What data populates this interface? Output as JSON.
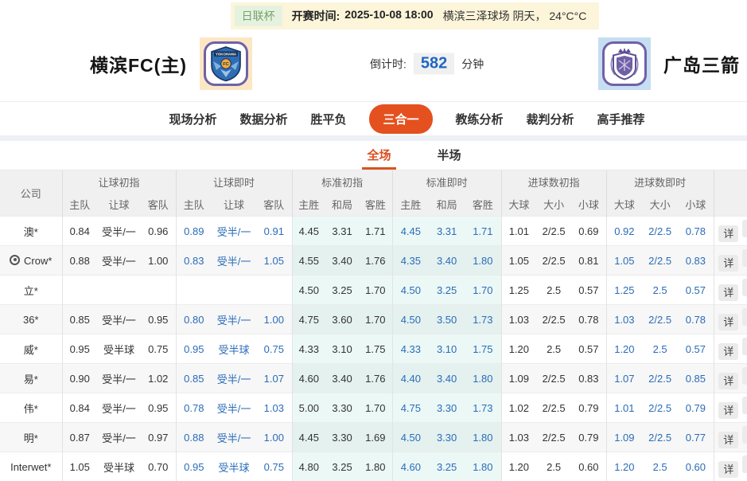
{
  "match_header": {
    "league": "日联杯",
    "kickoff_label": "开赛时间:",
    "kickoff_time": "2025-10-08 18:00",
    "venue_weather": "横滨三泽球场 阴天， 24°C°C",
    "home_team": "横滨FC(主)",
    "away_team": "广岛三箭",
    "home_logo_text": "YOKOHAMA",
    "home_logo_fc": "FC",
    "countdown_label": "倒计时:",
    "countdown_value": "582",
    "countdown_unit": "分钟"
  },
  "nav": {
    "items": [
      "现场分析",
      "数据分析",
      "胜平负",
      "三合一",
      "教练分析",
      "裁判分析",
      "高手推荐"
    ],
    "active_index": 3
  },
  "period_tabs": {
    "items": [
      "全场",
      "半场"
    ],
    "active_index": 0
  },
  "odds_table": {
    "company_header": "公司",
    "detail_label": "详",
    "groups": [
      {
        "label": "让球初指",
        "cols": [
          "主队",
          "让球",
          "客队"
        ]
      },
      {
        "label": "让球即时",
        "cols": [
          "主队",
          "让球",
          "客队"
        ]
      },
      {
        "label": "标准初指",
        "cols": [
          "主胜",
          "和局",
          "客胜"
        ]
      },
      {
        "label": "标准即时",
        "cols": [
          "主胜",
          "和局",
          "客胜"
        ]
      },
      {
        "label": "进球数初指",
        "cols": [
          "大球",
          "大小",
          "小球"
        ]
      },
      {
        "label": "进球数即时",
        "cols": [
          "大球",
          "大小",
          "小球"
        ]
      }
    ],
    "rows": [
      {
        "company": "澳*",
        "icon": false,
        "handicap_initial": [
          "0.84",
          "受半/一",
          "0.96"
        ],
        "handicap_live": [
          "0.89",
          "受半/一",
          "0.91"
        ],
        "std_initial": [
          "4.45",
          "3.31",
          "1.71"
        ],
        "std_live": [
          "4.45",
          "3.31",
          "1.71"
        ],
        "goals_initial": [
          "1.01",
          "2/2.5",
          "0.69"
        ],
        "goals_live": [
          "0.92",
          "2/2.5",
          "0.78"
        ]
      },
      {
        "company": "Crow*",
        "icon": true,
        "handicap_initial": [
          "0.88",
          "受半/一",
          "1.00"
        ],
        "handicap_live": [
          "0.83",
          "受半/一",
          "1.05"
        ],
        "std_initial": [
          "4.55",
          "3.40",
          "1.76"
        ],
        "std_live": [
          "4.35",
          "3.40",
          "1.80"
        ],
        "goals_initial": [
          "1.05",
          "2/2.5",
          "0.81"
        ],
        "goals_live": [
          "1.05",
          "2/2.5",
          "0.83"
        ]
      },
      {
        "company": "立*",
        "icon": false,
        "handicap_initial": [
          "",
          "",
          ""
        ],
        "handicap_live": [
          "",
          "",
          ""
        ],
        "std_initial": [
          "4.50",
          "3.25",
          "1.70"
        ],
        "std_live": [
          "4.50",
          "3.25",
          "1.70"
        ],
        "goals_initial": [
          "1.25",
          "2.5",
          "0.57"
        ],
        "goals_live": [
          "1.25",
          "2.5",
          "0.57"
        ]
      },
      {
        "company": "36*",
        "icon": false,
        "handicap_initial": [
          "0.85",
          "受半/一",
          "0.95"
        ],
        "handicap_live": [
          "0.80",
          "受半/一",
          "1.00"
        ],
        "std_initial": [
          "4.75",
          "3.60",
          "1.70"
        ],
        "std_live": [
          "4.50",
          "3.50",
          "1.73"
        ],
        "goals_initial": [
          "1.03",
          "2/2.5",
          "0.78"
        ],
        "goals_live": [
          "1.03",
          "2/2.5",
          "0.78"
        ]
      },
      {
        "company": "威*",
        "icon": false,
        "handicap_initial": [
          "0.95",
          "受半球",
          "0.75"
        ],
        "handicap_live": [
          "0.95",
          "受半球",
          "0.75"
        ],
        "std_initial": [
          "4.33",
          "3.10",
          "1.75"
        ],
        "std_live": [
          "4.33",
          "3.10",
          "1.75"
        ],
        "goals_initial": [
          "1.20",
          "2.5",
          "0.57"
        ],
        "goals_live": [
          "1.20",
          "2.5",
          "0.57"
        ]
      },
      {
        "company": "易*",
        "icon": false,
        "handicap_initial": [
          "0.90",
          "受半/一",
          "1.02"
        ],
        "handicap_live": [
          "0.85",
          "受半/一",
          "1.07"
        ],
        "std_initial": [
          "4.60",
          "3.40",
          "1.76"
        ],
        "std_live": [
          "4.40",
          "3.40",
          "1.80"
        ],
        "goals_initial": [
          "1.09",
          "2/2.5",
          "0.83"
        ],
        "goals_live": [
          "1.07",
          "2/2.5",
          "0.85"
        ]
      },
      {
        "company": "伟*",
        "icon": false,
        "handicap_initial": [
          "0.84",
          "受半/一",
          "0.95"
        ],
        "handicap_live": [
          "0.78",
          "受半/一",
          "1.03"
        ],
        "std_initial": [
          "5.00",
          "3.30",
          "1.70"
        ],
        "std_live": [
          "4.75",
          "3.30",
          "1.73"
        ],
        "goals_initial": [
          "1.02",
          "2/2.5",
          "0.79"
        ],
        "goals_live": [
          "1.01",
          "2/2.5",
          "0.79"
        ]
      },
      {
        "company": "明*",
        "icon": false,
        "handicap_initial": [
          "0.87",
          "受半/一",
          "0.97"
        ],
        "handicap_live": [
          "0.88",
          "受半/一",
          "1.00"
        ],
        "std_initial": [
          "4.45",
          "3.30",
          "1.69"
        ],
        "std_live": [
          "4.50",
          "3.30",
          "1.80"
        ],
        "goals_initial": [
          "1.03",
          "2/2.5",
          "0.79"
        ],
        "goals_live": [
          "1.09",
          "2/2.5",
          "0.77"
        ]
      },
      {
        "company": "Interwet*",
        "icon": false,
        "handicap_initial": [
          "1.05",
          "受半球",
          "0.70"
        ],
        "handicap_live": [
          "0.95",
          "受半球",
          "0.75"
        ],
        "std_initial": [
          "4.80",
          "3.25",
          "1.80"
        ],
        "std_live": [
          "4.60",
          "3.25",
          "1.80"
        ],
        "goals_initial": [
          "1.20",
          "2.5",
          "0.60"
        ],
        "goals_live": [
          "1.20",
          "2.5",
          "0.60"
        ]
      }
    ]
  },
  "colors": {
    "accent_orange": "#e4511f",
    "live_blue": "#2b6cb8",
    "countdown_blue": "#1f66c4",
    "badge_green": "#74a36b",
    "topbar_bg": "#fcf5da",
    "std_column_bg": "#eaf8f6"
  }
}
